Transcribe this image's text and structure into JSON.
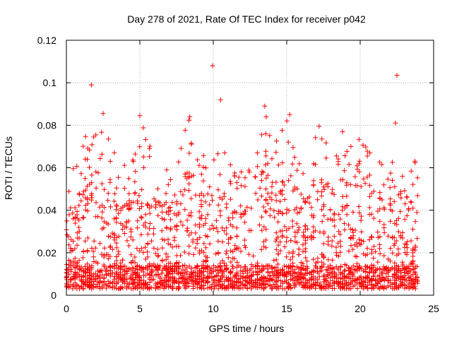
{
  "chart_data": {
    "type": "scatter",
    "title": "Day 278 of 2021, Rate Of TEC Index for receiver p042",
    "xlabel": "GPS time / hours",
    "ylabel": "ROTI / TECUs",
    "xlim": [
      0,
      25
    ],
    "ylim": [
      0,
      0.12
    ],
    "x_ticks": [
      0,
      5,
      10,
      15,
      20,
      25
    ],
    "x_tick_labels": [
      "0",
      "5",
      "10",
      "15",
      "20",
      "25"
    ],
    "y_ticks": [
      0,
      0.02,
      0.04,
      0.06,
      0.08,
      0.1,
      0.12
    ],
    "y_tick_labels": [
      "0",
      "0.02",
      "0.04",
      "0.06",
      "0.08",
      "0.1",
      "0.12"
    ],
    "grid": true,
    "marker": "+",
    "color": "#ff0000",
    "data_range_hours": [
      0,
      24
    ],
    "notable_points": [
      {
        "x": 1.7,
        "y": 0.099
      },
      {
        "x": 2.5,
        "y": 0.0855
      },
      {
        "x": 5.0,
        "y": 0.0845
      },
      {
        "x": 8.4,
        "y": 0.084
      },
      {
        "x": 9.95,
        "y": 0.108
      },
      {
        "x": 10.5,
        "y": 0.092
      },
      {
        "x": 13.5,
        "y": 0.089
      },
      {
        "x": 15.2,
        "y": 0.085
      },
      {
        "x": 17.2,
        "y": 0.0795
      },
      {
        "x": 18.8,
        "y": 0.077
      },
      {
        "x": 22.5,
        "y": 0.1035
      },
      {
        "x": 22.4,
        "y": 0.081
      }
    ],
    "envelope": [
      {
        "x": 0.0,
        "y": 0.041
      },
      {
        "x": 0.5,
        "y": 0.058
      },
      {
        "x": 1.2,
        "y": 0.071
      },
      {
        "x": 1.7,
        "y": 0.084
      },
      {
        "x": 2.5,
        "y": 0.074
      },
      {
        "x": 3.3,
        "y": 0.069
      },
      {
        "x": 4.3,
        "y": 0.056
      },
      {
        "x": 5.0,
        "y": 0.08
      },
      {
        "x": 5.5,
        "y": 0.076
      },
      {
        "x": 6.0,
        "y": 0.06
      },
      {
        "x": 6.8,
        "y": 0.06
      },
      {
        "x": 7.5,
        "y": 0.065
      },
      {
        "x": 8.4,
        "y": 0.083
      },
      {
        "x": 9.0,
        "y": 0.063
      },
      {
        "x": 9.95,
        "y": 0.065
      },
      {
        "x": 10.6,
        "y": 0.069
      },
      {
        "x": 11.2,
        "y": 0.058
      },
      {
        "x": 12.0,
        "y": 0.056
      },
      {
        "x": 12.8,
        "y": 0.061
      },
      {
        "x": 13.5,
        "y": 0.086
      },
      {
        "x": 14.3,
        "y": 0.071
      },
      {
        "x": 15.2,
        "y": 0.083
      },
      {
        "x": 16.0,
        "y": 0.055
      },
      {
        "x": 17.2,
        "y": 0.079
      },
      {
        "x": 18.0,
        "y": 0.066
      },
      {
        "x": 18.8,
        "y": 0.076
      },
      {
        "x": 19.5,
        "y": 0.07
      },
      {
        "x": 20.3,
        "y": 0.072
      },
      {
        "x": 21.1,
        "y": 0.063
      },
      {
        "x": 21.8,
        "y": 0.058
      },
      {
        "x": 22.5,
        "y": 0.072
      },
      {
        "x": 23.3,
        "y": 0.058
      },
      {
        "x": 24.0,
        "y": 0.069
      }
    ]
  }
}
